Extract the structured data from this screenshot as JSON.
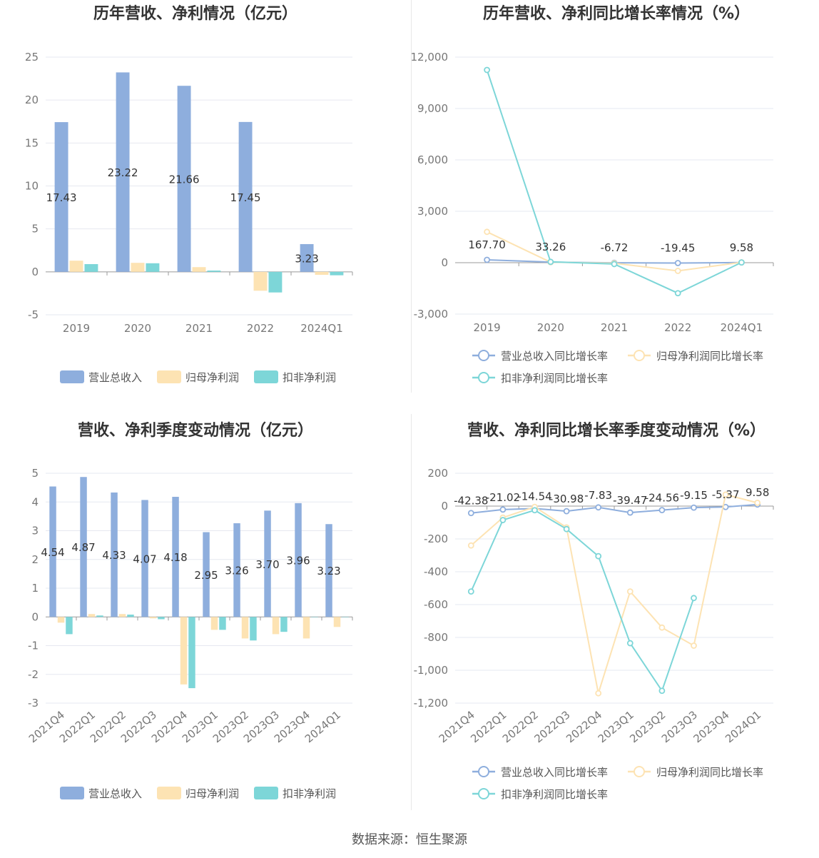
{
  "source": "数据来源：恒生聚源",
  "colors": {
    "revenue": "#8eaedd",
    "parent_profit": "#fde3b3",
    "nonrecurring_profit": "#7dd6d8",
    "grid": "#e6e8f0",
    "axis_text": "#777777",
    "title": "#333333"
  },
  "chart_data": [
    {
      "type": "bar",
      "title": "历年营收、净利情况（亿元）",
      "categories": [
        "2019",
        "2020",
        "2021",
        "2022",
        "2024Q1"
      ],
      "ylim": [
        -5,
        25
      ],
      "yticks": [
        25,
        20,
        15,
        10,
        5,
        0,
        -5
      ],
      "series": [
        {
          "name": "营业总收入",
          "values": [
            17.43,
            23.22,
            21.66,
            17.45,
            3.23
          ],
          "labels": [
            "17.43",
            "23.22",
            "21.66",
            "17.45",
            "3.23"
          ]
        },
        {
          "name": "归母净利润",
          "values": [
            1.3,
            1.05,
            0.55,
            -2.2,
            -0.35
          ]
        },
        {
          "name": "扣非净利润",
          "values": [
            0.9,
            1.0,
            0.15,
            -2.4,
            -0.4
          ]
        }
      ],
      "legend": "bottom"
    },
    {
      "type": "line",
      "title": "历年营收、净利同比增长率情况（%）",
      "categories": [
        "2019",
        "2020",
        "2021",
        "2022",
        "2024Q1"
      ],
      "ylim": [
        -3000,
        12000
      ],
      "yticks": [
        12000,
        9000,
        6000,
        3000,
        0,
        -3000
      ],
      "ytick_labels": [
        "12,000",
        "9,000",
        "6,000",
        "3,000",
        "0",
        "-3,000"
      ],
      "series": [
        {
          "name": "营业总收入同比增长率",
          "values": [
            167.7,
            33.26,
            -6.72,
            -19.45,
            9.58
          ],
          "labels": [
            "167.70",
            "33.26",
            "-6.72",
            "-19.45",
            "9.58"
          ]
        },
        {
          "name": "归母净利润同比增长率",
          "values": [
            1800,
            30,
            -30,
            -480,
            20
          ]
        },
        {
          "name": "扣非净利润同比增长率",
          "values": [
            11250,
            50,
            -80,
            -1780,
            15
          ]
        }
      ],
      "legend": "bottom"
    },
    {
      "type": "bar",
      "title": "营收、净利季度变动情况（亿元）",
      "categories": [
        "2021Q4",
        "2022Q1",
        "2022Q2",
        "2022Q3",
        "2022Q4",
        "2023Q1",
        "2023Q2",
        "2023Q3",
        "2023Q4",
        "2024Q1"
      ],
      "ylim": [
        -3,
        5
      ],
      "yticks": [
        5,
        4,
        3,
        2,
        1,
        0,
        -1,
        -2,
        -3
      ],
      "series": [
        {
          "name": "营业总收入",
          "values": [
            4.54,
            4.87,
            4.33,
            4.07,
            4.18,
            2.95,
            3.26,
            3.7,
            3.96,
            3.23
          ],
          "labels": [
            "4.54",
            "4.87",
            "4.33",
            "4.07",
            "4.18",
            "2.95",
            "3.26",
            "3.70",
            "3.96",
            "3.23"
          ]
        },
        {
          "name": "归母净利润",
          "values": [
            -0.2,
            0.1,
            0.1,
            -0.05,
            -2.35,
            -0.45,
            -0.75,
            -0.6,
            -0.75,
            -0.35
          ]
        },
        {
          "name": "扣非净利润",
          "values": [
            -0.6,
            0.05,
            0.08,
            -0.08,
            -2.48,
            -0.45,
            -0.82,
            -0.52,
            0,
            0
          ]
        }
      ],
      "legend": "bottom"
    },
    {
      "type": "line",
      "title": "营收、净利同比增长率季度变动情况（%）",
      "categories": [
        "2021Q4",
        "2022Q1",
        "2022Q2",
        "2022Q3",
        "2022Q4",
        "2023Q1",
        "2023Q2",
        "2023Q3",
        "2023Q4",
        "2024Q1"
      ],
      "ylim": [
        -1200,
        200
      ],
      "yticks": [
        200,
        0,
        -200,
        -400,
        -600,
        -800,
        -1000,
        -1200
      ],
      "ytick_labels": [
        "200",
        "0",
        "-200",
        "-400",
        "-600",
        "-800",
        "-1,000",
        "-1,200"
      ],
      "series": [
        {
          "name": "营业总收入同比增长率",
          "values": [
            -42.38,
            -21.02,
            -14.54,
            -30.98,
            -7.83,
            -39.47,
            -24.56,
            -9.15,
            -5.37,
            9.58
          ],
          "labels": [
            "-42.38",
            "-21.02",
            "-14.54",
            "-30.98",
            "-7.83",
            "-39.47",
            "-24.56",
            "-9.15",
            "-5.37",
            "9.58"
          ]
        },
        {
          "name": "归母净利润同比增长率",
          "values": [
            -240,
            -70,
            -5,
            -130,
            -1140,
            -520,
            -740,
            -850,
            70,
            20
          ]
        },
        {
          "name": "扣非净利润同比增长率",
          "values": [
            -520,
            -85,
            -25,
            -140,
            -305,
            -835,
            -1125,
            -560,
            null,
            null
          ]
        }
      ],
      "legend": "bottom"
    }
  ]
}
